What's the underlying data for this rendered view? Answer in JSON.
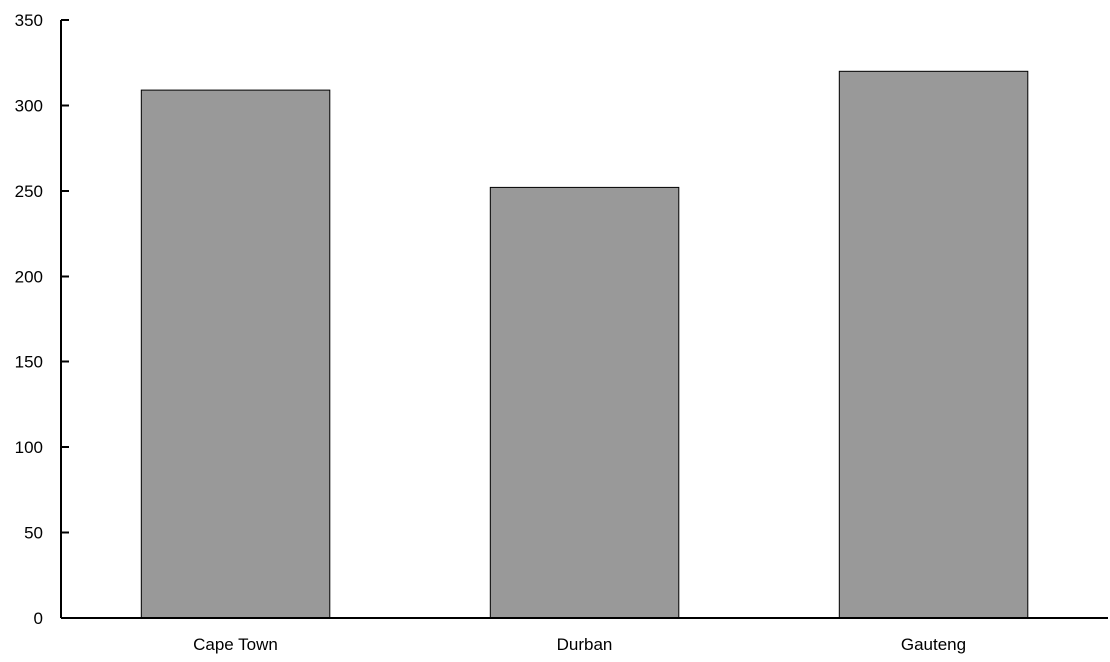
{
  "chart_data": {
    "type": "bar",
    "title": "",
    "xlabel": "",
    "ylabel": "",
    "categories": [
      "Cape Town",
      "Durban",
      "Gauteng"
    ],
    "values": [
      309,
      252,
      320
    ],
    "ylim": [
      0,
      350
    ],
    "yticks": [
      0,
      50,
      100,
      150,
      200,
      250,
      300,
      350
    ],
    "grid": false,
    "legend": "none",
    "colors": {
      "bar_fill": "#999999",
      "bar_stroke": "#000000",
      "axis": "#000000"
    }
  }
}
